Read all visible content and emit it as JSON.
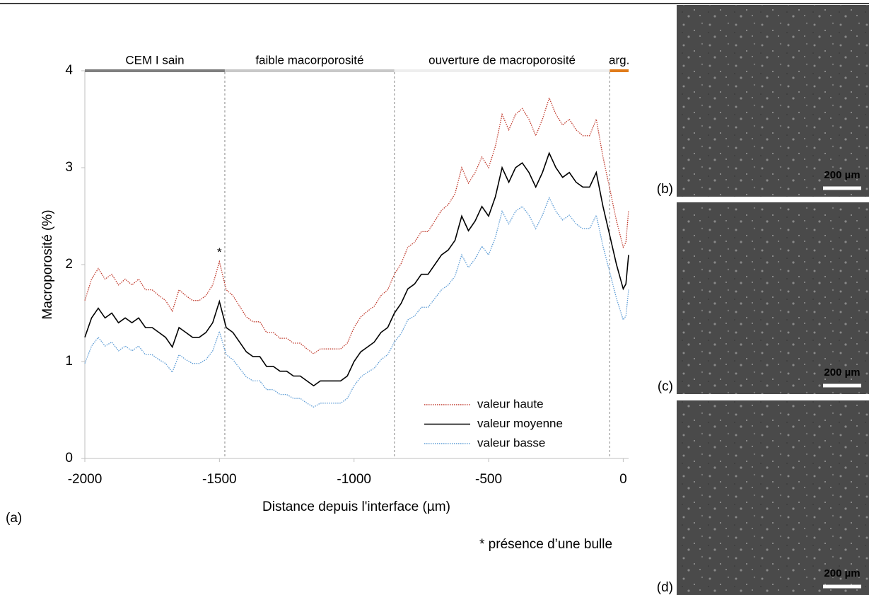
{
  "chart_data": {
    "type": "line",
    "panel_label": "(a)",
    "x_label": "Distance depuis l'interface (µm)",
    "y_label": "Macroporosité (%)",
    "xlim": [
      -2000,
      20
    ],
    "ylim": [
      0,
      4
    ],
    "xticks": [
      -2000,
      -1500,
      -1000,
      -500,
      0
    ],
    "yticks": [
      0,
      1,
      2,
      3,
      4
    ],
    "grid": false,
    "legend": "lower right",
    "zones": [
      {
        "label": "CEM I sain",
        "from": -2000,
        "to": -1480,
        "bar_color": "#7f7f7f",
        "text_color": "#7f7f7f"
      },
      {
        "label": "faible macorporosité",
        "from": -1480,
        "to": -850,
        "bar_color": "#c8c8c8",
        "text_color": "#bfbfbf"
      },
      {
        "label": "ouverture de macroporosité",
        "from": -850,
        "to": -50,
        "bar_color": "#eeeeee",
        "text_color": "#000000"
      },
      {
        "label": "arg.",
        "from": -50,
        "to": 20,
        "bar_color": "#e07b1a",
        "text_color": "#e07b1a"
      }
    ],
    "annotations": [
      {
        "text": "*",
        "x": -1500,
        "y": 2.12
      }
    ],
    "note": "* présence d’une bulle",
    "x": [
      -2000,
      -1975,
      -1950,
      -1925,
      -1900,
      -1875,
      -1850,
      -1825,
      -1800,
      -1775,
      -1750,
      -1725,
      -1700,
      -1675,
      -1650,
      -1625,
      -1600,
      -1575,
      -1550,
      -1525,
      -1500,
      -1475,
      -1450,
      -1425,
      -1400,
      -1375,
      -1350,
      -1325,
      -1300,
      -1275,
      -1250,
      -1225,
      -1200,
      -1175,
      -1150,
      -1125,
      -1100,
      -1075,
      -1050,
      -1025,
      -1000,
      -975,
      -950,
      -925,
      -900,
      -875,
      -850,
      -825,
      -800,
      -775,
      -750,
      -725,
      -700,
      -675,
      -650,
      -625,
      -600,
      -575,
      -550,
      -525,
      -500,
      -475,
      -450,
      -425,
      -400,
      -375,
      -350,
      -325,
      -300,
      -275,
      -250,
      -225,
      -200,
      -175,
      -150,
      -125,
      -100,
      -75,
      -50,
      -25,
      0,
      10,
      20
    ],
    "series": [
      {
        "name": "valeur haute",
        "color": "#c0392b",
        "style": "dotted",
        "values": [
          1.63,
          1.85,
          1.96,
          1.85,
          1.9,
          1.79,
          1.85,
          1.79,
          1.85,
          1.74,
          1.74,
          1.68,
          1.63,
          1.52,
          1.74,
          1.68,
          1.63,
          1.63,
          1.68,
          1.79,
          2.03,
          1.74,
          1.68,
          1.57,
          1.46,
          1.41,
          1.41,
          1.3,
          1.3,
          1.24,
          1.24,
          1.19,
          1.19,
          1.13,
          1.08,
          1.13,
          1.13,
          1.13,
          1.13,
          1.19,
          1.35,
          1.46,
          1.52,
          1.57,
          1.68,
          1.74,
          1.9,
          2.01,
          2.18,
          2.23,
          2.34,
          2.34,
          2.45,
          2.56,
          2.62,
          2.73,
          3.0,
          2.84,
          2.95,
          3.11,
          3.0,
          3.22,
          3.55,
          3.39,
          3.55,
          3.61,
          3.5,
          3.33,
          3.5,
          3.72,
          3.55,
          3.44,
          3.5,
          3.39,
          3.33,
          3.33,
          3.5,
          3.11,
          2.78,
          2.45,
          2.18,
          2.23,
          2.56
        ]
      },
      {
        "name": "valeur moyenne",
        "color": "#000000",
        "style": "solid",
        "values": [
          1.25,
          1.45,
          1.55,
          1.45,
          1.5,
          1.4,
          1.45,
          1.4,
          1.45,
          1.35,
          1.35,
          1.3,
          1.25,
          1.15,
          1.35,
          1.3,
          1.25,
          1.25,
          1.3,
          1.4,
          1.62,
          1.35,
          1.3,
          1.2,
          1.1,
          1.05,
          1.05,
          0.95,
          0.95,
          0.9,
          0.9,
          0.85,
          0.85,
          0.8,
          0.75,
          0.8,
          0.8,
          0.8,
          0.8,
          0.85,
          1.0,
          1.1,
          1.15,
          1.2,
          1.3,
          1.35,
          1.5,
          1.6,
          1.75,
          1.8,
          1.9,
          1.9,
          2.0,
          2.1,
          2.15,
          2.25,
          2.5,
          2.35,
          2.45,
          2.6,
          2.5,
          2.7,
          3.0,
          2.85,
          3.0,
          3.05,
          2.95,
          2.8,
          2.95,
          3.15,
          3.0,
          2.9,
          2.95,
          2.85,
          2.8,
          2.8,
          2.95,
          2.6,
          2.3,
          2.0,
          1.75,
          1.8,
          2.1
        ]
      },
      {
        "name": "valeur basse",
        "color": "#5b9bd5",
        "style": "dotted",
        "values": [
          0.98,
          1.16,
          1.25,
          1.16,
          1.2,
          1.11,
          1.16,
          1.11,
          1.16,
          1.07,
          1.07,
          1.02,
          0.98,
          0.89,
          1.07,
          1.02,
          0.98,
          0.98,
          1.02,
          1.11,
          1.31,
          1.07,
          1.02,
          0.93,
          0.84,
          0.8,
          0.8,
          0.71,
          0.71,
          0.66,
          0.66,
          0.62,
          0.62,
          0.57,
          0.53,
          0.57,
          0.57,
          0.57,
          0.57,
          0.62,
          0.75,
          0.84,
          0.89,
          0.93,
          1.02,
          1.07,
          1.2,
          1.29,
          1.43,
          1.47,
          1.56,
          1.56,
          1.65,
          1.74,
          1.79,
          1.88,
          2.1,
          1.97,
          2.06,
          2.19,
          2.1,
          2.28,
          2.55,
          2.42,
          2.55,
          2.6,
          2.51,
          2.37,
          2.51,
          2.69,
          2.55,
          2.46,
          2.51,
          2.42,
          2.37,
          2.37,
          2.51,
          2.19,
          1.92,
          1.65,
          1.43,
          1.47,
          1.74
        ]
      }
    ]
  },
  "panels": [
    {
      "label": "(b)",
      "scale_bar": "200 µm"
    },
    {
      "label": "(c)",
      "scale_bar": "200 µm"
    },
    {
      "label": "(d)",
      "scale_bar": "200 µm"
    }
  ]
}
